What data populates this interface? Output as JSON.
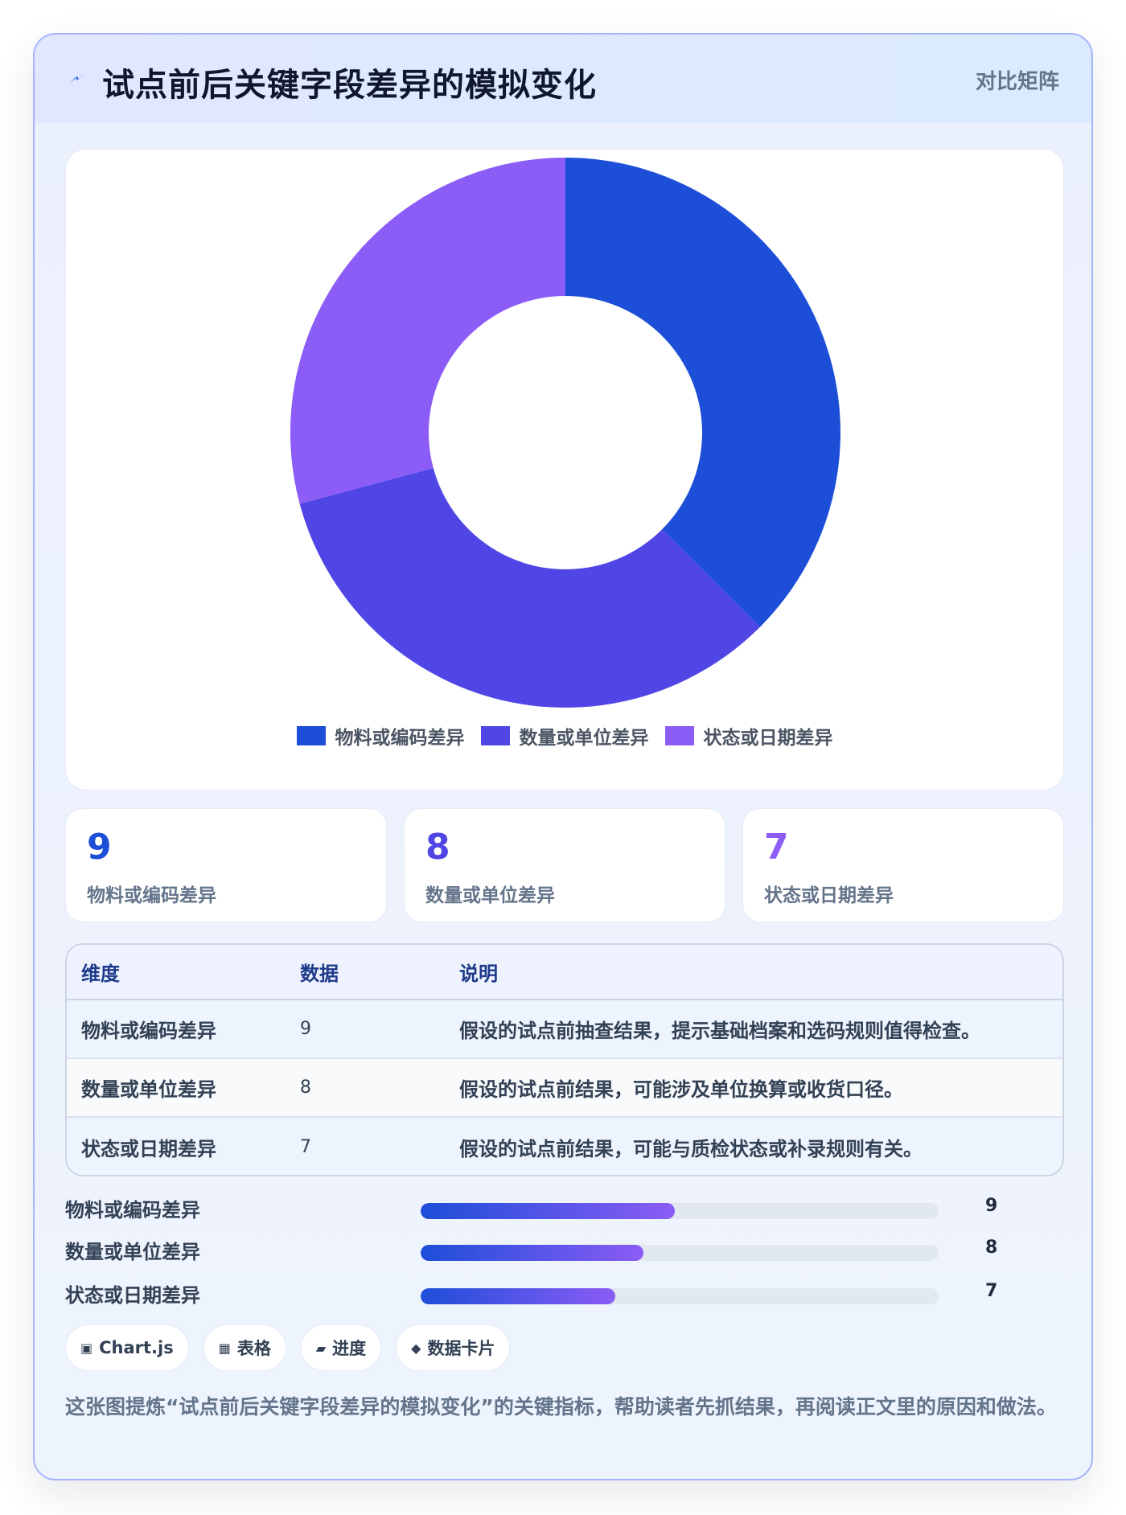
{
  "header": {
    "title": "试点前后关键字段差异的模拟变化",
    "tag": "对比矩阵",
    "icon": "lightning-icon"
  },
  "chart_data": {
    "type": "pie",
    "categories": [
      "物料或编码差异",
      "数量或单位差异",
      "状态或日期差异"
    ],
    "values": [
      9,
      8,
      7
    ],
    "colors": [
      "#1d4ed8",
      "#4f46e5",
      "#8b5cf6"
    ],
    "donut": true,
    "legend": "bottom"
  },
  "stats": [
    {
      "value": "9",
      "label": "物料或编码差异",
      "color": "#1d4ed8"
    },
    {
      "value": "8",
      "label": "数量或单位差异",
      "color": "#4f46e5"
    },
    {
      "value": "7",
      "label": "状态或日期差异",
      "color": "#8b5cf6"
    }
  ],
  "table": {
    "headers": [
      "维度",
      "数据",
      "说明"
    ],
    "rows": [
      {
        "dimension": "物料或编码差异",
        "value": "9",
        "note": "假设的试点前抽查结果，提示基础档案和选码规则值得检查。"
      },
      {
        "dimension": "数量或单位差异",
        "value": "8",
        "note": "假设的试点前结果，可能涉及单位换算或收货口径。"
      },
      {
        "dimension": "状态或日期差异",
        "value": "7",
        "note": "假设的试点前结果，可能与质检状态或补录规则有关。"
      }
    ]
  },
  "bars": [
    {
      "label": "物料或编码差异",
      "value": "9",
      "fraction": 0.49
    },
    {
      "label": "数量或单位差异",
      "value": "8",
      "fraction": 0.43
    },
    {
      "label": "状态或日期差异",
      "value": "7",
      "fraction": 0.375
    }
  ],
  "chips": [
    {
      "icon": "▣",
      "label": "Chart.js"
    },
    {
      "icon": "▦",
      "label": "表格"
    },
    {
      "icon": "▰",
      "label": "进度"
    },
    {
      "icon": "◆",
      "label": "数据卡片"
    }
  ],
  "footnote": "这张图提炼“试点前后关键字段差异的模拟变化”的关键指标，帮助读者先抓结果，再阅读正文里的原因和做法。"
}
